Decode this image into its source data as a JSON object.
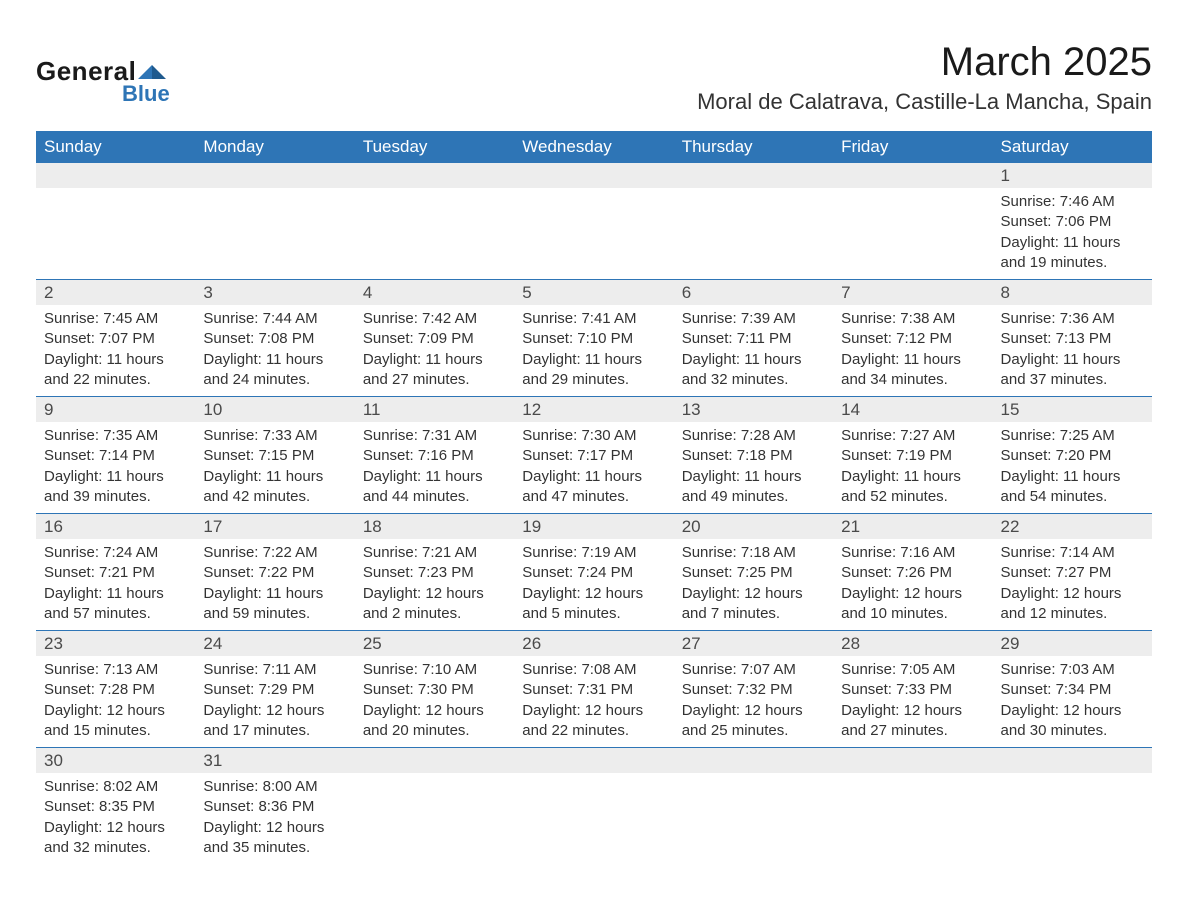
{
  "logo": {
    "text_general": "General",
    "text_blue": "Blue",
    "icon_color": "#2e75b6"
  },
  "title": {
    "month": "March 2025",
    "location": "Moral de Calatrava, Castille-La Mancha, Spain"
  },
  "colors": {
    "header_bg": "#2e75b6",
    "header_text": "#ffffff",
    "daynum_bg": "#ededed",
    "daynum_text": "#4a4a4a",
    "content_text": "#333333",
    "border": "#2e75b6"
  },
  "weekdays": [
    "Sunday",
    "Monday",
    "Tuesday",
    "Wednesday",
    "Thursday",
    "Friday",
    "Saturday"
  ],
  "weeks": [
    [
      null,
      null,
      null,
      null,
      null,
      null,
      {
        "day": "1",
        "sunrise": "Sunrise: 7:46 AM",
        "sunset": "Sunset: 7:06 PM",
        "daylight1": "Daylight: 11 hours",
        "daylight2": "and 19 minutes."
      }
    ],
    [
      {
        "day": "2",
        "sunrise": "Sunrise: 7:45 AM",
        "sunset": "Sunset: 7:07 PM",
        "daylight1": "Daylight: 11 hours",
        "daylight2": "and 22 minutes."
      },
      {
        "day": "3",
        "sunrise": "Sunrise: 7:44 AM",
        "sunset": "Sunset: 7:08 PM",
        "daylight1": "Daylight: 11 hours",
        "daylight2": "and 24 minutes."
      },
      {
        "day": "4",
        "sunrise": "Sunrise: 7:42 AM",
        "sunset": "Sunset: 7:09 PM",
        "daylight1": "Daylight: 11 hours",
        "daylight2": "and 27 minutes."
      },
      {
        "day": "5",
        "sunrise": "Sunrise: 7:41 AM",
        "sunset": "Sunset: 7:10 PM",
        "daylight1": "Daylight: 11 hours",
        "daylight2": "and 29 minutes."
      },
      {
        "day": "6",
        "sunrise": "Sunrise: 7:39 AM",
        "sunset": "Sunset: 7:11 PM",
        "daylight1": "Daylight: 11 hours",
        "daylight2": "and 32 minutes."
      },
      {
        "day": "7",
        "sunrise": "Sunrise: 7:38 AM",
        "sunset": "Sunset: 7:12 PM",
        "daylight1": "Daylight: 11 hours",
        "daylight2": "and 34 minutes."
      },
      {
        "day": "8",
        "sunrise": "Sunrise: 7:36 AM",
        "sunset": "Sunset: 7:13 PM",
        "daylight1": "Daylight: 11 hours",
        "daylight2": "and 37 minutes."
      }
    ],
    [
      {
        "day": "9",
        "sunrise": "Sunrise: 7:35 AM",
        "sunset": "Sunset: 7:14 PM",
        "daylight1": "Daylight: 11 hours",
        "daylight2": "and 39 minutes."
      },
      {
        "day": "10",
        "sunrise": "Sunrise: 7:33 AM",
        "sunset": "Sunset: 7:15 PM",
        "daylight1": "Daylight: 11 hours",
        "daylight2": "and 42 minutes."
      },
      {
        "day": "11",
        "sunrise": "Sunrise: 7:31 AM",
        "sunset": "Sunset: 7:16 PM",
        "daylight1": "Daylight: 11 hours",
        "daylight2": "and 44 minutes."
      },
      {
        "day": "12",
        "sunrise": "Sunrise: 7:30 AM",
        "sunset": "Sunset: 7:17 PM",
        "daylight1": "Daylight: 11 hours",
        "daylight2": "and 47 minutes."
      },
      {
        "day": "13",
        "sunrise": "Sunrise: 7:28 AM",
        "sunset": "Sunset: 7:18 PM",
        "daylight1": "Daylight: 11 hours",
        "daylight2": "and 49 minutes."
      },
      {
        "day": "14",
        "sunrise": "Sunrise: 7:27 AM",
        "sunset": "Sunset: 7:19 PM",
        "daylight1": "Daylight: 11 hours",
        "daylight2": "and 52 minutes."
      },
      {
        "day": "15",
        "sunrise": "Sunrise: 7:25 AM",
        "sunset": "Sunset: 7:20 PM",
        "daylight1": "Daylight: 11 hours",
        "daylight2": "and 54 minutes."
      }
    ],
    [
      {
        "day": "16",
        "sunrise": "Sunrise: 7:24 AM",
        "sunset": "Sunset: 7:21 PM",
        "daylight1": "Daylight: 11 hours",
        "daylight2": "and 57 minutes."
      },
      {
        "day": "17",
        "sunrise": "Sunrise: 7:22 AM",
        "sunset": "Sunset: 7:22 PM",
        "daylight1": "Daylight: 11 hours",
        "daylight2": "and 59 minutes."
      },
      {
        "day": "18",
        "sunrise": "Sunrise: 7:21 AM",
        "sunset": "Sunset: 7:23 PM",
        "daylight1": "Daylight: 12 hours",
        "daylight2": "and 2 minutes."
      },
      {
        "day": "19",
        "sunrise": "Sunrise: 7:19 AM",
        "sunset": "Sunset: 7:24 PM",
        "daylight1": "Daylight: 12 hours",
        "daylight2": "and 5 minutes."
      },
      {
        "day": "20",
        "sunrise": "Sunrise: 7:18 AM",
        "sunset": "Sunset: 7:25 PM",
        "daylight1": "Daylight: 12 hours",
        "daylight2": "and 7 minutes."
      },
      {
        "day": "21",
        "sunrise": "Sunrise: 7:16 AM",
        "sunset": "Sunset: 7:26 PM",
        "daylight1": "Daylight: 12 hours",
        "daylight2": "and 10 minutes."
      },
      {
        "day": "22",
        "sunrise": "Sunrise: 7:14 AM",
        "sunset": "Sunset: 7:27 PM",
        "daylight1": "Daylight: 12 hours",
        "daylight2": "and 12 minutes."
      }
    ],
    [
      {
        "day": "23",
        "sunrise": "Sunrise: 7:13 AM",
        "sunset": "Sunset: 7:28 PM",
        "daylight1": "Daylight: 12 hours",
        "daylight2": "and 15 minutes."
      },
      {
        "day": "24",
        "sunrise": "Sunrise: 7:11 AM",
        "sunset": "Sunset: 7:29 PM",
        "daylight1": "Daylight: 12 hours",
        "daylight2": "and 17 minutes."
      },
      {
        "day": "25",
        "sunrise": "Sunrise: 7:10 AM",
        "sunset": "Sunset: 7:30 PM",
        "daylight1": "Daylight: 12 hours",
        "daylight2": "and 20 minutes."
      },
      {
        "day": "26",
        "sunrise": "Sunrise: 7:08 AM",
        "sunset": "Sunset: 7:31 PM",
        "daylight1": "Daylight: 12 hours",
        "daylight2": "and 22 minutes."
      },
      {
        "day": "27",
        "sunrise": "Sunrise: 7:07 AM",
        "sunset": "Sunset: 7:32 PM",
        "daylight1": "Daylight: 12 hours",
        "daylight2": "and 25 minutes."
      },
      {
        "day": "28",
        "sunrise": "Sunrise: 7:05 AM",
        "sunset": "Sunset: 7:33 PM",
        "daylight1": "Daylight: 12 hours",
        "daylight2": "and 27 minutes."
      },
      {
        "day": "29",
        "sunrise": "Sunrise: 7:03 AM",
        "sunset": "Sunset: 7:34 PM",
        "daylight1": "Daylight: 12 hours",
        "daylight2": "and 30 minutes."
      }
    ],
    [
      {
        "day": "30",
        "sunrise": "Sunrise: 8:02 AM",
        "sunset": "Sunset: 8:35 PM",
        "daylight1": "Daylight: 12 hours",
        "daylight2": "and 32 minutes."
      },
      {
        "day": "31",
        "sunrise": "Sunrise: 8:00 AM",
        "sunset": "Sunset: 8:36 PM",
        "daylight1": "Daylight: 12 hours",
        "daylight2": "and 35 minutes."
      },
      null,
      null,
      null,
      null,
      null
    ]
  ]
}
